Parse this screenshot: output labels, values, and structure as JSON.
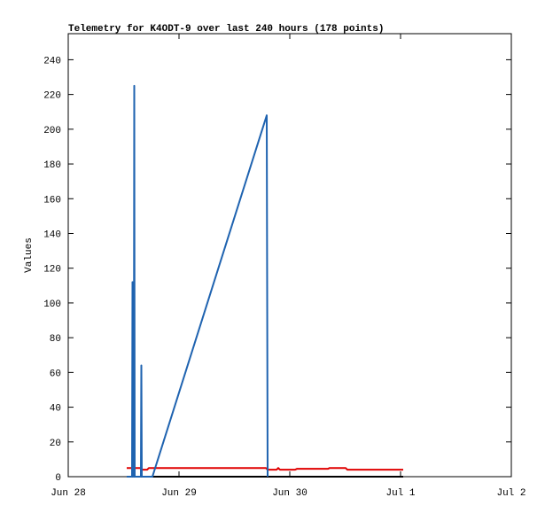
{
  "chart_data": {
    "type": "line",
    "title": "Telemetry for K4ODT-9 over last 240 hours (178 points)",
    "y_label": "Values",
    "xlim": [
      0,
      4
    ],
    "xticks": [
      {
        "value": 0,
        "label": "Jun 28"
      },
      {
        "value": 1,
        "label": "Jun 29"
      },
      {
        "value": 2,
        "label": "Jun 30"
      },
      {
        "value": 3,
        "label": "Jul 1"
      },
      {
        "value": 4,
        "label": "Jul 2"
      }
    ],
    "ylim": [
      0,
      255
    ],
    "yticks": [
      0,
      20,
      40,
      60,
      80,
      100,
      120,
      140,
      160,
      180,
      200,
      220,
      240
    ],
    "series": [
      {
        "color": "#000000",
        "x": [
          0.528,
          3.024
        ],
        "values": [
          0,
          0
        ]
      },
      {
        "color": "#e00000",
        "x": [
          0.528,
          0.648,
          0.664,
          0.712,
          0.728,
          1.784,
          1.8,
          1.88,
          1.896,
          1.912,
          2.048,
          2.064,
          2.344,
          2.36,
          2.504,
          2.52,
          3.024
        ],
        "values": [
          5,
          5,
          4,
          4,
          5,
          5,
          4,
          4,
          5,
          4,
          4,
          4.5,
          4.5,
          5,
          5,
          4,
          4
        ]
      },
      {
        "color": "#1f63b0",
        "x": [
          0.528,
          0.576,
          0.58,
          0.584,
          0.592,
          0.596,
          0.6,
          0.656,
          0.66,
          0.664,
          0.76,
          1.792,
          1.8
        ],
        "values": [
          0,
          0,
          112,
          0,
          0,
          225,
          0,
          0,
          64,
          0,
          0,
          208,
          0
        ]
      }
    ]
  }
}
